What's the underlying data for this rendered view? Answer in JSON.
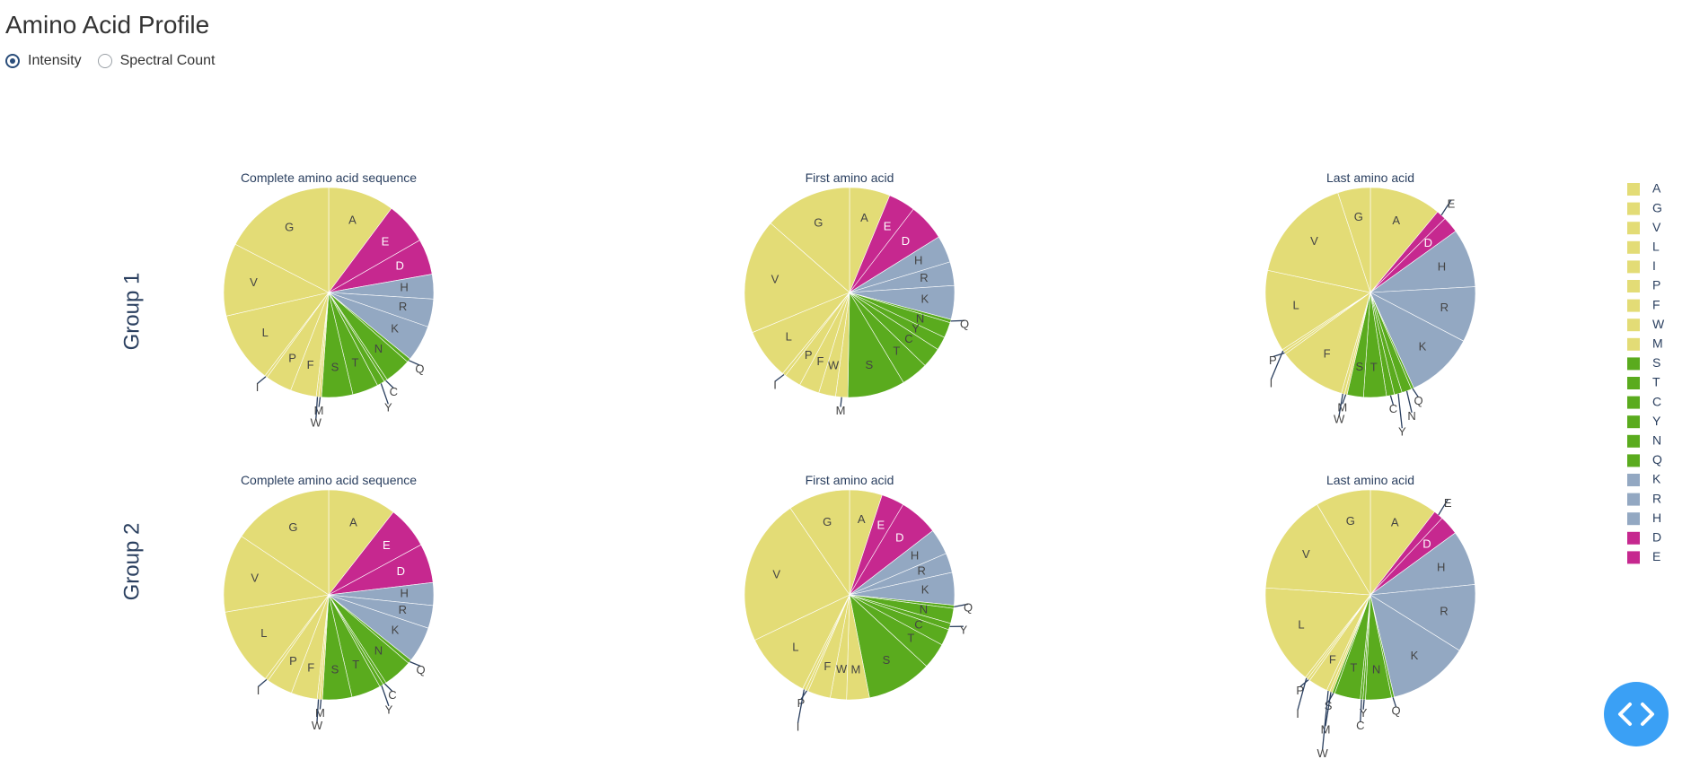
{
  "page": {
    "title": "Amino Acid Profile"
  },
  "mode_selector": {
    "options": [
      {
        "label": "Intensity",
        "selected": true
      },
      {
        "label": "Spectral Count",
        "selected": false
      }
    ]
  },
  "colors": {
    "A": "#e3dc76",
    "G": "#e3dc76",
    "V": "#e3dc76",
    "L": "#e3dc76",
    "I": "#e3dc76",
    "P": "#e3dc76",
    "F": "#e3dc76",
    "W": "#e3dc76",
    "M": "#e3dc76",
    "S": "#5aab1e",
    "T": "#5aab1e",
    "C": "#5aab1e",
    "Y": "#5aab1e",
    "N": "#5aab1e",
    "Q": "#5aab1e",
    "K": "#93a8c2",
    "R": "#93a8c2",
    "H": "#93a8c2",
    "D": "#c6288f",
    "E": "#c6288f",
    "fab": "#3aa0f5"
  },
  "fab_icon": "code-icon",
  "chart_data": {
    "type": "pie",
    "legend": {
      "placement": "right",
      "entries": [
        "A",
        "G",
        "V",
        "L",
        "I",
        "P",
        "F",
        "W",
        "M",
        "S",
        "T",
        "C",
        "Y",
        "N",
        "Q",
        "K",
        "R",
        "H",
        "D",
        "E"
      ]
    },
    "row_labels": [
      "Group 1",
      "Group 2"
    ],
    "subplots": [
      {
        "group": "Group 1",
        "title": "Complete amino acid sequence",
        "slices": [
          {
            "label": "A",
            "value": 10.2
          },
          {
            "label": "E",
            "value": 6.5
          },
          {
            "label": "D",
            "value": 5.5
          },
          {
            "label": "H",
            "value": 3.8
          },
          {
            "label": "R",
            "value": 4.3
          },
          {
            "label": "K",
            "value": 5.6
          },
          {
            "label": "Q",
            "value": 0.6
          },
          {
            "label": "N",
            "value": 4.1
          },
          {
            "label": "C",
            "value": 0.5
          },
          {
            "label": "Y",
            "value": 1.2
          },
          {
            "label": "T",
            "value": 4.0
          },
          {
            "label": "S",
            "value": 4.8
          },
          {
            "label": "M",
            "value": 0.4
          },
          {
            "label": "W",
            "value": 0.4
          },
          {
            "label": "F",
            "value": 4.0
          },
          {
            "label": "P",
            "value": 4.1
          },
          {
            "label": "I",
            "value": 0.4
          },
          {
            "label": "L",
            "value": 11.0
          },
          {
            "label": "V",
            "value": 11.2
          },
          {
            "label": "G",
            "value": 17.4
          }
        ]
      },
      {
        "group": "Group 1",
        "title": "First amino acid",
        "slices": [
          {
            "label": "A",
            "value": 6.0
          },
          {
            "label": "E",
            "value": 4.0
          },
          {
            "label": "D",
            "value": 5.5
          },
          {
            "label": "H",
            "value": 4.0
          },
          {
            "label": "R",
            "value": 3.5
          },
          {
            "label": "K",
            "value": 5.0
          },
          {
            "label": "Q",
            "value": 0.5
          },
          {
            "label": "N",
            "value": 2.3
          },
          {
            "label": "Y",
            "value": 2.0
          },
          {
            "label": "C",
            "value": 3.0
          },
          {
            "label": "T",
            "value": 4.0
          },
          {
            "label": "S",
            "value": 8.5
          },
          {
            "label": "M",
            "value": 1.8
          },
          {
            "label": "W",
            "value": 2.5
          },
          {
            "label": "F",
            "value": 3.0
          },
          {
            "label": "P",
            "value": 2.5
          },
          {
            "label": "I",
            "value": 0.5
          },
          {
            "label": "L",
            "value": 7.5
          },
          {
            "label": "V",
            "value": 17.0
          },
          {
            "label": "G",
            "value": 13.0
          }
        ]
      },
      {
        "group": "Group 1",
        "title": "Last amino acid",
        "slices": [
          {
            "label": "A",
            "value": 11.0
          },
          {
            "label": "E",
            "value": 1.5
          },
          {
            "label": "D",
            "value": 2.5
          },
          {
            "label": "H",
            "value": 9.0
          },
          {
            "label": "R",
            "value": 8.5
          },
          {
            "label": "K",
            "value": 10.5
          },
          {
            "label": "Q",
            "value": 0.4
          },
          {
            "label": "N",
            "value": 1.5
          },
          {
            "label": "Y",
            "value": 1.2
          },
          {
            "label": "C",
            "value": 1.2
          },
          {
            "label": "T",
            "value": 3.5
          },
          {
            "label": "S",
            "value": 2.5
          },
          {
            "label": "M",
            "value": 0.4
          },
          {
            "label": "W",
            "value": 0.5
          },
          {
            "label": "F",
            "value": 10.5
          },
          {
            "label": "P",
            "value": 0.4
          },
          {
            "label": "I",
            "value": 0.4
          },
          {
            "label": "L",
            "value": 12.5
          },
          {
            "label": "V",
            "value": 16.5
          },
          {
            "label": "G",
            "value": 5.0
          }
        ]
      },
      {
        "group": "Group 2",
        "title": "Complete amino acid sequence",
        "slices": [
          {
            "label": "A",
            "value": 10.5
          },
          {
            "label": "E",
            "value": 6.5
          },
          {
            "label": "D",
            "value": 6.0
          },
          {
            "label": "H",
            "value": 3.5
          },
          {
            "label": "R",
            "value": 3.5
          },
          {
            "label": "K",
            "value": 5.5
          },
          {
            "label": "Q",
            "value": 0.6
          },
          {
            "label": "N",
            "value": 4.5
          },
          {
            "label": "C",
            "value": 0.5
          },
          {
            "label": "Y",
            "value": 0.6
          },
          {
            "label": "T",
            "value": 4.5
          },
          {
            "label": "S",
            "value": 4.5
          },
          {
            "label": "M",
            "value": 0.4
          },
          {
            "label": "W",
            "value": 0.4
          },
          {
            "label": "F",
            "value": 4.0
          },
          {
            "label": "P",
            "value": 4.0
          },
          {
            "label": "I",
            "value": 0.5
          },
          {
            "label": "L",
            "value": 12.0
          },
          {
            "label": "V",
            "value": 12.0
          },
          {
            "label": "G",
            "value": 15.5
          }
        ]
      },
      {
        "group": "Group 2",
        "title": "First amino acid",
        "slices": [
          {
            "label": "A",
            "value": 5.0
          },
          {
            "label": "E",
            "value": 3.5
          },
          {
            "label": "D",
            "value": 6.0
          },
          {
            "label": "H",
            "value": 4.0
          },
          {
            "label": "R",
            "value": 3.0
          },
          {
            "label": "K",
            "value": 5.0
          },
          {
            "label": "Q",
            "value": 0.5
          },
          {
            "label": "N",
            "value": 2.3
          },
          {
            "label": "Y",
            "value": 1.0
          },
          {
            "label": "C",
            "value": 2.5
          },
          {
            "label": "T",
            "value": 4.0
          },
          {
            "label": "S",
            "value": 10.0
          },
          {
            "label": "M",
            "value": 3.5
          },
          {
            "label": "W",
            "value": 2.5
          },
          {
            "label": "F",
            "value": 3.5
          },
          {
            "label": "P",
            "value": 0.4
          },
          {
            "label": "I",
            "value": 0.5
          },
          {
            "label": "L",
            "value": 10.5
          },
          {
            "label": "V",
            "value": 22.5
          },
          {
            "label": "G",
            "value": 9.5
          }
        ]
      },
      {
        "group": "Group 2",
        "title": "Last amino acid",
        "slices": [
          {
            "label": "A",
            "value": 10.5
          },
          {
            "label": "E",
            "value": 1.5
          },
          {
            "label": "D",
            "value": 3.0
          },
          {
            "label": "H",
            "value": 8.5
          },
          {
            "label": "R",
            "value": 10.5
          },
          {
            "label": "K",
            "value": 12.5
          },
          {
            "label": "Q",
            "value": 0.4
          },
          {
            "label": "N",
            "value": 4.0
          },
          {
            "label": "Y",
            "value": 0.4
          },
          {
            "label": "C",
            "value": 0.4
          },
          {
            "label": "T",
            "value": 4.0
          },
          {
            "label": "S",
            "value": 0.4
          },
          {
            "label": "M",
            "value": 0.4
          },
          {
            "label": "W",
            "value": 0.5
          },
          {
            "label": "F",
            "value": 3.0
          },
          {
            "label": "P",
            "value": 0.4
          },
          {
            "label": "I",
            "value": 0.4
          },
          {
            "label": "L",
            "value": 15.5
          },
          {
            "label": "V",
            "value": 15.5
          },
          {
            "label": "G",
            "value": 8.5
          }
        ]
      }
    ]
  }
}
